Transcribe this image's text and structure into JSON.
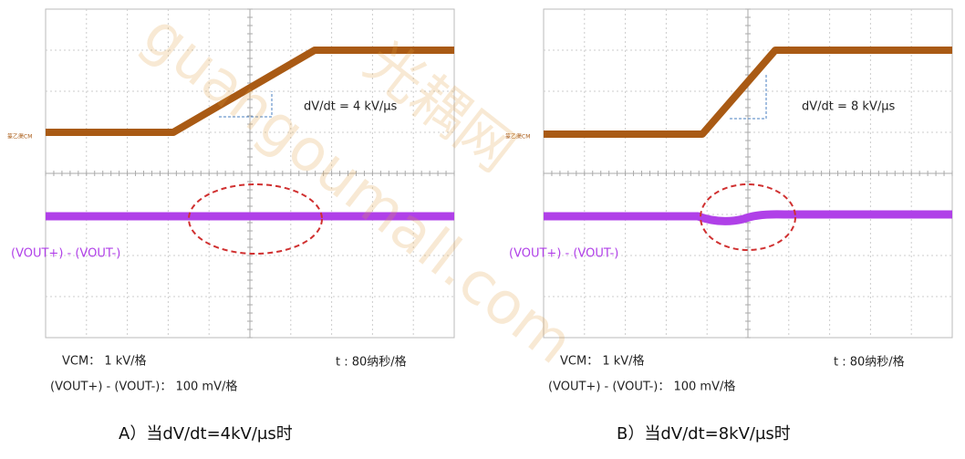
{
  "panels": [
    {
      "cm_label": "篆乙渠CM",
      "slope": "dV/dt = 4 kV/µs",
      "trace_label": "(VOUT+) - (VOUT-)",
      "vcm_scale": "VCM： 1 kV/格",
      "time_scale": "t : 80纳秒/格",
      "out_scale": "(VOUT+) - (VOUT-)： 100 mV/格",
      "caption": "A）当dV/dt=4kV/µs时"
    },
    {
      "cm_label": "篆乙渠CM",
      "slope": "dV/dt = 8 kV/µs",
      "trace_label": "(VOUT+) - (VOUT-)",
      "vcm_scale": "VCM： 1 kV/格",
      "time_scale": "t : 80纳秒/格",
      "out_scale": "(VOUT+) - (VOUT-)： 100 mV/格",
      "caption": "B）当dV/dt=8kV/µs时"
    }
  ],
  "watermark": {
    "site": "guangoumall.com",
    "brand": "光耦网"
  }
}
